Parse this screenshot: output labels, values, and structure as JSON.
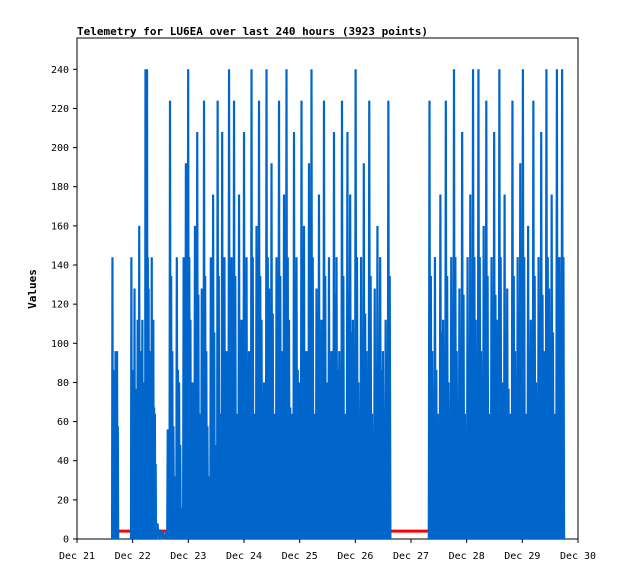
{
  "chart_data": {
    "type": "line",
    "title": "Telemetry for LU6EA over last 240 hours (3923 points)",
    "xlabel": "",
    "ylabel": "Values",
    "x_ticks": [
      "Dec 21",
      "Dec 22",
      "Dec 23",
      "Dec 24",
      "Dec 25",
      "Dec 26",
      "Dec 27",
      "Dec 28",
      "Dec 29",
      "Dec 30"
    ],
    "xlim_days": [
      0,
      9
    ],
    "ylim": [
      0,
      256
    ],
    "y_ticks": [
      0,
      20,
      40,
      60,
      80,
      100,
      120,
      140,
      160,
      180,
      200,
      220,
      240
    ],
    "grid": false,
    "series": [
      {
        "color": "#0066cc",
        "segments": [
          {
            "start": 0.63,
            "end": 0.74,
            "peaks": [
              144,
              48,
              96,
              96
            ]
          },
          {
            "start": 0.97,
            "end": 1.42,
            "peaks": [
              144,
              80,
              128,
              64,
              112,
              160,
              96,
              112,
              80,
              240,
              240,
              128,
              96,
              144,
              112,
              64
            ]
          },
          {
            "start": 1.42,
            "end": 1.62,
            "peaks": [
              8,
              4
            ]
          },
          {
            "start": 1.62,
            "end": 2.72,
            "peaks": [
              56,
              224,
              96,
              32,
              144,
              80,
              16,
              144,
              192,
              240,
              112,
              80,
              160,
              208,
              64,
              128,
              224,
              96,
              32,
              144,
              176,
              48,
              224,
              64,
              208,
              144,
              96
            ]
          },
          {
            "start": 2.72,
            "end": 4.65,
            "peaks": [
              240,
              144,
              224,
              64,
              176,
              112,
              208,
              144,
              96,
              240,
              64,
              160,
              224,
              112,
              80,
              240,
              128,
              192,
              64,
              144,
              224,
              96,
              176,
              240,
              112,
              64,
              208,
              144,
              80,
              224,
              160,
              96,
              192,
              240,
              64,
              128,
              176,
              112,
              224,
              80,
              144,
              96,
              208
            ]
          },
          {
            "start": 4.65,
            "end": 5.63,
            "peaks": [
              144,
              96,
              224,
              64,
              208,
              176,
              112,
              240,
              80,
              144,
              192,
              96,
              224,
              64,
              128,
              160,
              144,
              96,
              112,
              224
            ]
          },
          {
            "start": 6.32,
            "end": 7.2,
            "peaks": [
              224,
              96,
              144,
              64,
              176,
              112,
              224,
              80,
              144,
              240,
              96,
              128,
              208,
              64,
              144,
              176,
              240,
              112
            ]
          },
          {
            "start": 7.2,
            "end": 8.75,
            "peaks": [
              240,
              96,
              160,
              224,
              64,
              144,
              208,
              112,
              240,
              80,
              176,
              128,
              64,
              224,
              96,
              144,
              192,
              240,
              64,
              160,
              112,
              224,
              80,
              144,
              208,
              96,
              240,
              128,
              176,
              64,
              240,
              144,
              240
            ]
          }
        ]
      },
      {
        "color": "#ff0000",
        "segments": [
          {
            "start": 0.74,
            "end": 8.75,
            "level": 4
          }
        ]
      }
    ]
  }
}
